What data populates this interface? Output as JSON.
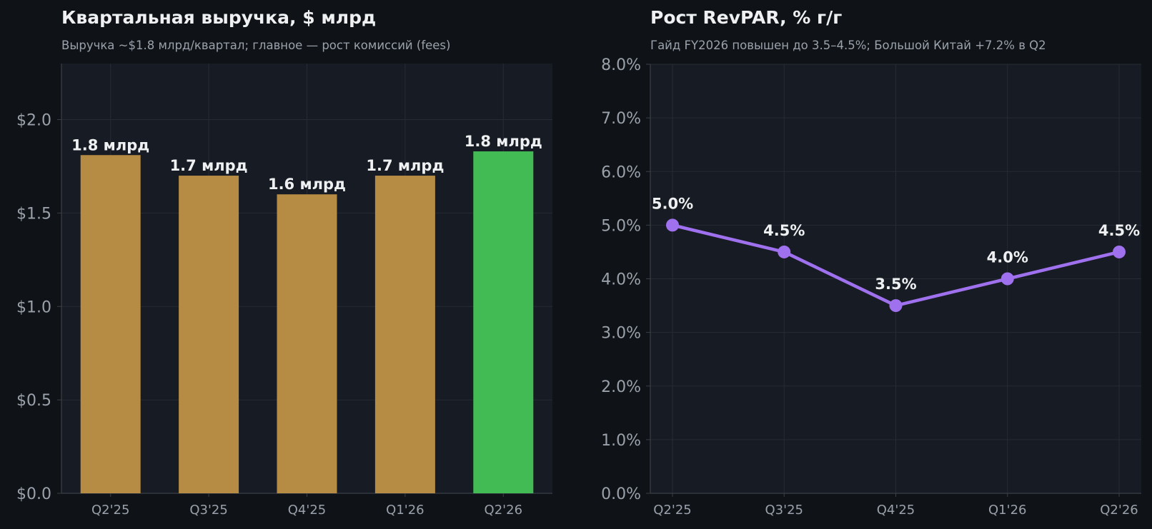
{
  "chart_data": [
    {
      "type": "bar",
      "title": "Квартальная выручка, $ млрд",
      "subtitle": "Выручка ~$1.8 млрд/квартал; главное — рост комиссий (fees)",
      "categories": [
        "Q2'25",
        "Q3'25",
        "Q4'25",
        "Q1'26",
        "Q2'26"
      ],
      "values": [
        1.81,
        1.7,
        1.6,
        1.7,
        1.83
      ],
      "data_labels": [
        "1.8 млрд",
        "1.7 млрд",
        "1.6 млрд",
        "1.7 млрд",
        "1.8 млрд"
      ],
      "bar_colors": [
        "#b68b43",
        "#b68b43",
        "#b68b43",
        "#b68b43",
        "#43bb55"
      ],
      "yticks": [
        0,
        0.5,
        1.0,
        1.5,
        2.0
      ],
      "ytick_labels": [
        "$0.0",
        "$0.5",
        "$1.0",
        "$1.5",
        "$2.0"
      ],
      "ylim": [
        0,
        2.3
      ],
      "grid": true
    },
    {
      "type": "line",
      "title": "Рост RevPAR, % г/г",
      "subtitle": "Гайд FY2026 повышен до 3.5–4.5%; Большой Китай +7.2% в Q2",
      "categories": [
        "Q2'25",
        "Q3'25",
        "Q4'25",
        "Q1'26",
        "Q2'26"
      ],
      "values": [
        5.0,
        4.5,
        3.5,
        4.0,
        4.5
      ],
      "data_labels": [
        "5.0%",
        "4.5%",
        "3.5%",
        "4.0%",
        "4.5%"
      ],
      "line_color": "#a071ee",
      "yticks": [
        0,
        1,
        2,
        3,
        4,
        5,
        6,
        7,
        8
      ],
      "ytick_labels": [
        "0.0%",
        "1.0%",
        "2.0%",
        "3.0%",
        "4.0%",
        "5.0%",
        "6.0%",
        "7.0%",
        "8.0%"
      ],
      "ylim": [
        0,
        8
      ],
      "grid": true
    }
  ],
  "theme": {
    "background": "#0f1317",
    "plot_background": "#171b23",
    "grid": "#262b34",
    "axis": "#3a3f48",
    "tick_text": "#9aa1ab",
    "label_text": "#eef0f2"
  }
}
